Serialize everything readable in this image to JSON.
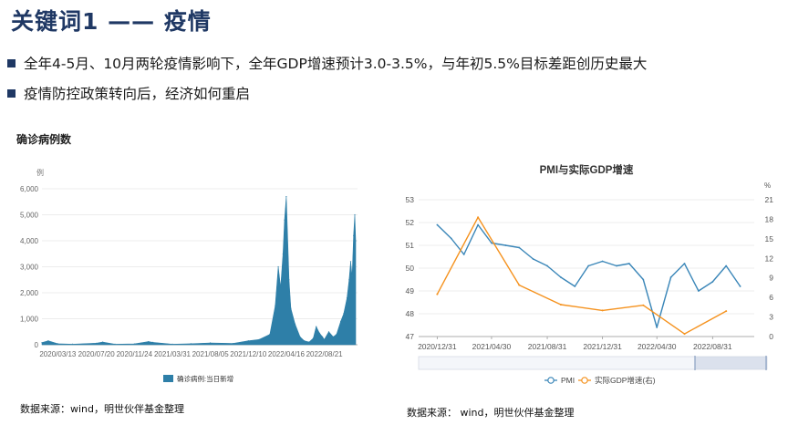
{
  "slide": {
    "title": "关键词1 —— 疫情",
    "bullets": [
      "全年4-5月、10月两轮疫情影响下，全年GDP增速预计3.0-3.5%，与年初5.5%目标差距创历史最大",
      "疫情防控政策转向后，经济如何重启"
    ],
    "left_subtitle": "确诊病例数",
    "source_left": "数据来源：wind，明世伙伴基金整理",
    "source_right": "数据来源： wind，明世伙伴基金整理"
  },
  "colors": {
    "title": "#1f3864",
    "area": "#2e7fa8",
    "pmi": "#3a86b8",
    "gdp": "#f5921e"
  },
  "chart_data": [
    {
      "type": "area",
      "ylabel": "例",
      "ylim": [
        0,
        6000
      ],
      "yticks": [
        "0",
        "1,000",
        "2,000",
        "3,000",
        "4,000",
        "5,000",
        "6,000"
      ],
      "xticks": [
        "2020/03/13",
        "2020/07/20",
        "2020/11/24",
        "2021/03/31",
        "2021/08/05",
        "2021/12/10",
        "2022/04/16",
        "2022/08/21"
      ],
      "legend": "确诊病例:当日新增",
      "x": [
        "2020/01/20",
        "2020/02/10",
        "2020/03/13",
        "2020/05/01",
        "2020/07/20",
        "2020/08/10",
        "2020/09/20",
        "2020/11/24",
        "2021/01/10",
        "2021/01/25",
        "2021/03/31",
        "2021/06/01",
        "2021/08/05",
        "2021/10/20",
        "2021/12/10",
        "2022/01/15",
        "2022/02/20",
        "2022/03/10",
        "2022/03/20",
        "2022/03/28",
        "2022/04/05",
        "2022/04/10",
        "2022/04/16",
        "2022/04/25",
        "2022/05/01",
        "2022/05/15",
        "2022/06/01",
        "2022/06/15",
        "2022/07/01",
        "2022/07/15",
        "2022/07/25",
        "2022/08/05",
        "2022/08/15",
        "2022/08/21",
        "2022/09/05",
        "2022/09/20",
        "2022/10/01",
        "2022/10/15",
        "2022/10/25",
        "2022/11/05",
        "2022/11/12",
        "2022/11/17",
        "2022/11/22",
        "2022/11/27",
        "2022/12/01",
        "2022/12/04"
      ],
      "values": [
        80,
        150,
        40,
        20,
        60,
        100,
        20,
        30,
        120,
        90,
        20,
        40,
        70,
        50,
        150,
        200,
        400,
        1500,
        3000,
        2200,
        3500,
        4800,
        5700,
        2500,
        1400,
        800,
        300,
        150,
        100,
        250,
        700,
        450,
        300,
        200,
        500,
        300,
        400,
        900,
        1200,
        1800,
        2500,
        3200,
        2600,
        4200,
        5000,
        4000
      ]
    },
    {
      "type": "line",
      "title": "PMI与实际GDP增速",
      "x": [
        "2020/12/31",
        "2021/01/31",
        "2021/02/28",
        "2021/03/31",
        "2021/04/30",
        "2021/05/31",
        "2021/06/30",
        "2021/07/31",
        "2021/08/31",
        "2021/09/30",
        "2021/10/31",
        "2021/11/30",
        "2021/12/31",
        "2022/01/31",
        "2022/02/28",
        "2022/03/31",
        "2022/04/30",
        "2022/05/31",
        "2022/06/30",
        "2022/07/31",
        "2022/08/31",
        "2022/09/30",
        "2022/10/31"
      ],
      "xticks": [
        "2020/12/31",
        "2021/04/30",
        "2021/08/31",
        "2021/12/31",
        "2022/04/30",
        "2022/08/31"
      ],
      "left_axis": {
        "ylim": [
          47,
          53
        ],
        "ticks": [
          "47",
          "48",
          "49",
          "50",
          "51",
          "52",
          "53"
        ]
      },
      "right_axis": {
        "label": "%",
        "ylim": [
          0,
          21
        ],
        "ticks": [
          "0",
          "3",
          "6",
          "9",
          "12",
          "15",
          "18",
          "21"
        ]
      },
      "series": [
        {
          "name": "PMI",
          "axis": "left",
          "values": [
            51.9,
            51.3,
            50.6,
            51.9,
            51.1,
            51.0,
            50.9,
            50.4,
            50.1,
            49.6,
            49.2,
            50.1,
            50.3,
            50.1,
            50.2,
            49.5,
            47.4,
            49.6,
            50.2,
            49.0,
            49.4,
            50.1,
            49.2
          ]
        },
        {
          "name": "实际GDP增速(右)",
          "axis": "right",
          "points": [
            {
              "x": "2020/12/31",
              "y": 6.5
            },
            {
              "x": "2021/03/31",
              "y": 18.3
            },
            {
              "x": "2021/06/30",
              "y": 7.9
            },
            {
              "x": "2021/09/30",
              "y": 4.9
            },
            {
              "x": "2021/12/31",
              "y": 4.0
            },
            {
              "x": "2022/03/31",
              "y": 4.8
            },
            {
              "x": "2022/06/30",
              "y": 0.4
            },
            {
              "x": "2022/09/30",
              "y": 3.9
            }
          ]
        }
      ]
    }
  ]
}
